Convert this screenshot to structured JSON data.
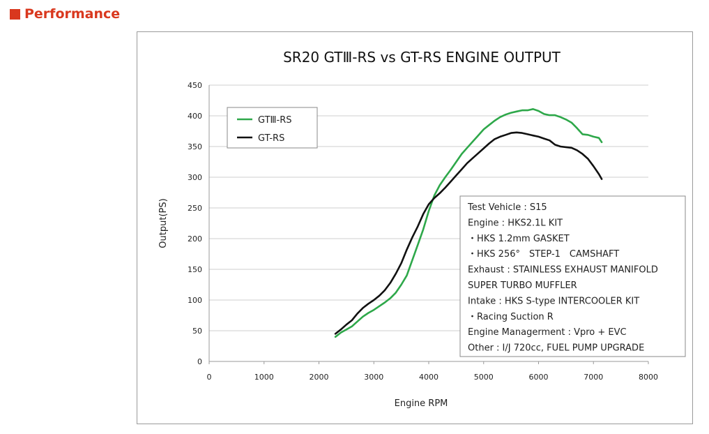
{
  "section": {
    "title": "Performance",
    "accent": "#d9381e"
  },
  "chart_data": {
    "type": "line",
    "title": "SR20 GTⅢ-RS vs GT-RS ENGINE OUTPUT",
    "xlabel": "Engine RPM",
    "ylabel": "Output(PS)",
    "xlim": [
      0,
      8000
    ],
    "ylim": [
      0,
      450
    ],
    "xticks": [
      0,
      1000,
      2000,
      3000,
      4000,
      5000,
      6000,
      7000,
      8000
    ],
    "yticks": [
      0,
      50,
      100,
      150,
      200,
      250,
      300,
      350,
      400,
      450
    ],
    "grid": "horizontal",
    "legend_position": "top-left",
    "series": [
      {
        "name": "GTⅢ-RS",
        "color": "#2ea84a",
        "x": [
          2300,
          2400,
          2500,
          2600,
          2700,
          2800,
          2900,
          3000,
          3100,
          3200,
          3300,
          3400,
          3500,
          3600,
          3700,
          3800,
          3900,
          4000,
          4100,
          4200,
          4300,
          4400,
          4500,
          4600,
          4700,
          4800,
          4900,
          5000,
          5100,
          5200,
          5300,
          5400,
          5500,
          5600,
          5700,
          5800,
          5900,
          6000,
          6100,
          6200,
          6300,
          6400,
          6500,
          6600,
          6700,
          6800,
          6900,
          7000,
          7100,
          7150
        ],
        "values": [
          40,
          47,
          52,
          57,
          65,
          73,
          79,
          84,
          90,
          96,
          103,
          112,
          125,
          140,
          165,
          190,
          215,
          245,
          270,
          287,
          300,
          312,
          325,
          338,
          348,
          358,
          368,
          378,
          385,
          392,
          398,
          402,
          405,
          407,
          409,
          409,
          411,
          408,
          403,
          401,
          401,
          398,
          394,
          389,
          380,
          370,
          369,
          366,
          364,
          357
        ]
      },
      {
        "name": "GT-RS",
        "color": "#111111",
        "x": [
          2300,
          2400,
          2500,
          2600,
          2700,
          2800,
          2900,
          3000,
          3100,
          3200,
          3300,
          3400,
          3500,
          3600,
          3700,
          3800,
          3900,
          4000,
          4100,
          4200,
          4300,
          4400,
          4500,
          4600,
          4700,
          4800,
          4900,
          5000,
          5100,
          5200,
          5300,
          5400,
          5500,
          5600,
          5700,
          5800,
          5900,
          6000,
          6100,
          6200,
          6300,
          6400,
          6500,
          6600,
          6700,
          6800,
          6900,
          7000,
          7100,
          7150
        ],
        "values": [
          45,
          52,
          60,
          67,
          78,
          87,
          94,
          100,
          107,
          116,
          128,
          143,
          160,
          182,
          202,
          220,
          240,
          256,
          266,
          274,
          283,
          293,
          303,
          313,
          323,
          331,
          339,
          347,
          355,
          362,
          366,
          369,
          372,
          373,
          372,
          370,
          368,
          366,
          363,
          360,
          353,
          350,
          349,
          348,
          344,
          338,
          330,
          318,
          305,
          297
        ]
      }
    ],
    "annotation_box": [
      "Test Vehicle : S15",
      "Engine : HKS2.1L KIT",
      "・HKS 1.2mm GASKET",
      "・HKS 256°　STEP-1　CAMSHAFT",
      "Exhaust : STAINLESS EXHAUST MANIFOLD",
      "SUPER TURBO MUFFLER",
      "Intake : HKS S-type INTERCOOLER KIT",
      "・Racing Suction R",
      "Engine Managerment : Vpro + EVC",
      "Other : I/J 720cc, FUEL PUMP UPGRADE"
    ]
  }
}
